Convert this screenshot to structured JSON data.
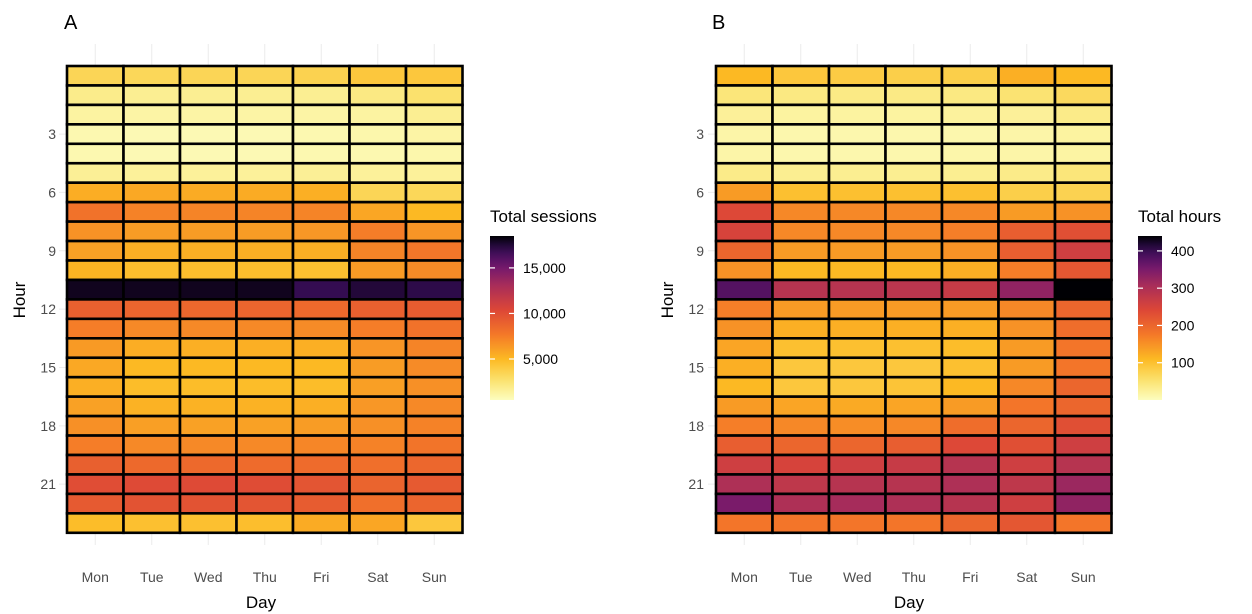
{
  "chart_data": [
    {
      "type": "heatmap",
      "panel_label": "A",
      "xlabel": "Day",
      "ylabel": "Hour",
      "x": [
        "Mon",
        "Tue",
        "Wed",
        "Thu",
        "Fri",
        "Sat",
        "Sun"
      ],
      "y_tick_labels": [
        "3",
        "6",
        "9",
        "12",
        "15",
        "18",
        "21"
      ],
      "y_tick_values": [
        3,
        6,
        9,
        12,
        15,
        18,
        21
      ],
      "hours": [
        0,
        1,
        2,
        3,
        4,
        5,
        6,
        7,
        8,
        9,
        10,
        11,
        12,
        13,
        14,
        15,
        16,
        17,
        18,
        19,
        20,
        21,
        22,
        23
      ],
      "legend": {
        "title": "Total sessions",
        "range": [
          500,
          18500
        ],
        "ticks": [
          5000,
          10000,
          15000
        ],
        "tick_labels": [
          "5,000",
          "10,000",
          "15,000"
        ],
        "placement": "right"
      },
      "palette": "inferno-reversed",
      "values": [
        [
          3400,
          3300,
          3400,
          3400,
          3600,
          4200,
          4200
        ],
        [
          1900,
          1700,
          1700,
          1700,
          1700,
          2100,
          2700
        ],
        [
          1300,
          1200,
          1200,
          1200,
          1200,
          1300,
          1700
        ],
        [
          900,
          800,
          800,
          800,
          900,
          1000,
          1200
        ],
        [
          900,
          800,
          800,
          800,
          900,
          900,
          1000
        ],
        [
          1600,
          1500,
          1500,
          1500,
          1600,
          1500,
          1500
        ],
        [
          5500,
          5700,
          5600,
          5600,
          5400,
          3400,
          3300
        ],
        [
          8000,
          7300,
          7200,
          7200,
          7200,
          5800,
          5000
        ],
        [
          6600,
          6200,
          6200,
          6200,
          6400,
          7500,
          6500
        ],
        [
          6000,
          5400,
          5400,
          5400,
          5400,
          7200,
          7800
        ],
        [
          5200,
          4700,
          4700,
          4700,
          4600,
          6300,
          6900
        ],
        [
          18000,
          18000,
          18000,
          18000,
          17000,
          17500,
          17200
        ],
        [
          9000,
          8700,
          8600,
          8700,
          8500,
          9000,
          9200
        ],
        [
          7500,
          7000,
          7000,
          7000,
          6900,
          7500,
          8000
        ],
        [
          6300,
          5500,
          5400,
          5400,
          5400,
          6500,
          7200
        ],
        [
          5700,
          5000,
          5000,
          5000,
          5000,
          6200,
          6900
        ],
        [
          5400,
          4800,
          4800,
          4800,
          4800,
          6100,
          6700
        ],
        [
          6000,
          5300,
          5300,
          5300,
          5400,
          6400,
          7000
        ],
        [
          6700,
          6100,
          6000,
          6000,
          6200,
          6700,
          7300
        ],
        [
          7500,
          7000,
          7000,
          7000,
          7100,
          7300,
          7900
        ],
        [
          9000,
          8500,
          8500,
          8400,
          8400,
          8200,
          8600
        ],
        [
          10000,
          10200,
          10200,
          10100,
          9600,
          8800,
          9300
        ],
        [
          9300,
          9700,
          9700,
          9600,
          9200,
          8200,
          8700
        ],
        [
          4800,
          4600,
          4600,
          4700,
          5600,
          5800,
          4200
        ]
      ]
    },
    {
      "type": "heatmap",
      "panel_label": "B",
      "xlabel": "Day",
      "ylabel": "Hour",
      "x": [
        "Mon",
        "Tue",
        "Wed",
        "Thu",
        "Fri",
        "Sat",
        "Sun"
      ],
      "y_tick_labels": [
        "3",
        "6",
        "9",
        "12",
        "15",
        "18",
        "21"
      ],
      "y_tick_values": [
        3,
        6,
        9,
        12,
        15,
        18,
        21
      ],
      "hours": [
        0,
        1,
        2,
        3,
        4,
        5,
        6,
        7,
        8,
        9,
        10,
        11,
        12,
        13,
        14,
        15,
        16,
        17,
        18,
        19,
        20,
        21,
        22,
        23
      ],
      "legend": {
        "title": "Total hours",
        "range": [
          0,
          440
        ],
        "ticks": [
          100,
          200,
          300,
          400
        ],
        "tick_labels": [
          "100",
          "200",
          "300",
          "400"
        ],
        "placement": "right"
      },
      "palette": "inferno-reversed",
      "values": [
        [
          110,
          90,
          85,
          80,
          80,
          120,
          110
        ],
        [
          45,
          40,
          38,
          38,
          40,
          50,
          65
        ],
        [
          25,
          20,
          20,
          20,
          22,
          25,
          35
        ],
        [
          15,
          12,
          12,
          12,
          12,
          15,
          20
        ],
        [
          15,
          12,
          12,
          12,
          14,
          15,
          18
        ],
        [
          35,
          30,
          30,
          30,
          30,
          35,
          45
        ],
        [
          140,
          100,
          100,
          100,
          100,
          80,
          75
        ],
        [
          240,
          160,
          160,
          160,
          160,
          140,
          150
        ],
        [
          250,
          160,
          160,
          160,
          170,
          210,
          230
        ],
        [
          200,
          140,
          140,
          140,
          150,
          210,
          260
        ],
        [
          150,
          110,
          110,
          110,
          120,
          170,
          220
        ],
        [
          380,
          290,
          290,
          285,
          270,
          330,
          440
        ],
        [
          170,
          140,
          140,
          140,
          140,
          160,
          200
        ],
        [
          150,
          120,
          120,
          120,
          120,
          150,
          190
        ],
        [
          130,
          100,
          100,
          100,
          105,
          140,
          180
        ],
        [
          120,
          90,
          90,
          90,
          100,
          140,
          180
        ],
        [
          110,
          90,
          90,
          95,
          110,
          160,
          200
        ],
        [
          140,
          130,
          125,
          130,
          140,
          180,
          200
        ],
        [
          170,
          160,
          155,
          160,
          190,
          200,
          230
        ],
        [
          210,
          200,
          200,
          210,
          240,
          230,
          260
        ],
        [
          260,
          250,
          260,
          270,
          290,
          260,
          290
        ],
        [
          300,
          280,
          290,
          290,
          300,
          280,
          320
        ],
        [
          350,
          300,
          310,
          300,
          290,
          260,
          330
        ],
        [
          180,
          180,
          180,
          180,
          200,
          220,
          180
        ]
      ]
    }
  ]
}
